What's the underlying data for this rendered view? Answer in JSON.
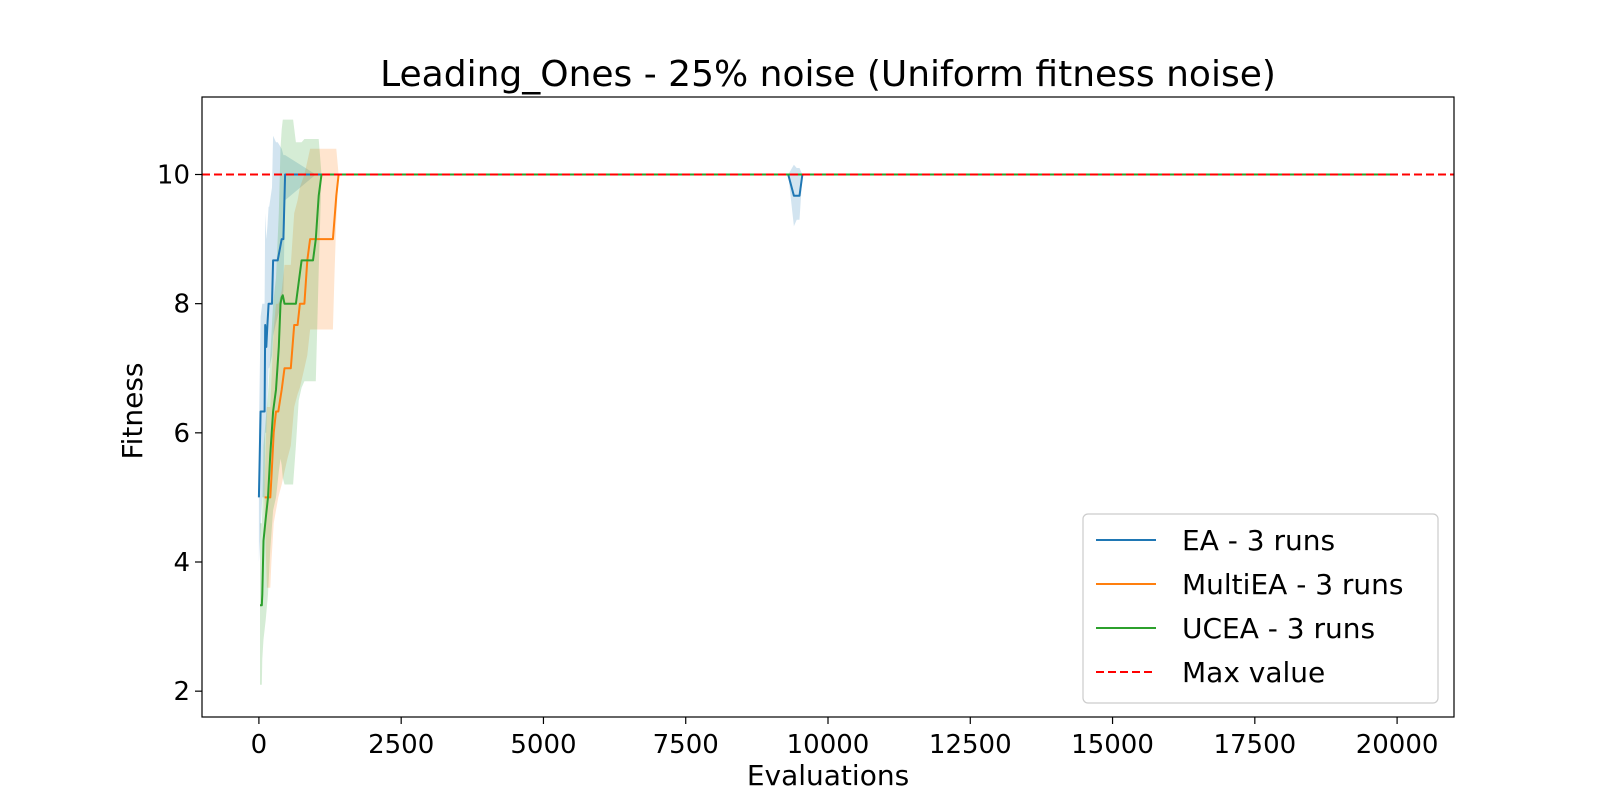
{
  "chart_data": {
    "type": "line",
    "title": "Leading_Ones - 25% noise (Uniform fitness noise)",
    "xlabel": "Evaluations",
    "ylabel": "Fitness",
    "xlim": [
      -1000,
      21000
    ],
    "ylim": [
      1.6,
      11.2
    ],
    "xticks": [
      0,
      2500,
      5000,
      7500,
      10000,
      12500,
      15000,
      17500,
      20000
    ],
    "yticks": [
      2,
      4,
      6,
      8,
      10
    ],
    "grid": false,
    "legend_position": "lower-right",
    "max_value": 10,
    "series": [
      {
        "name": "EA - 3 runs",
        "color": "#1f77b4",
        "x": [
          0,
          30,
          60,
          100,
          110,
          130,
          150,
          170,
          180,
          230,
          250,
          300,
          330,
          400,
          430,
          460,
          1000,
          9300,
          9400,
          9450,
          9500,
          9550,
          9600,
          20000
        ],
        "y": [
          5.0,
          6.33,
          6.33,
          6.33,
          7.67,
          7.33,
          7.67,
          8.0,
          8.0,
          8.0,
          8.67,
          8.67,
          8.67,
          9.0,
          9.0,
          10.0,
          10.0,
          10.0,
          9.67,
          9.67,
          9.67,
          10.0,
          10.0,
          10.0
        ],
        "lower": [
          4.0,
          4.5,
          5.0,
          5.0,
          6.0,
          6.0,
          6.5,
          7.0,
          7.0,
          7.2,
          7.5,
          7.7,
          7.8,
          8.0,
          8.2,
          9.6,
          10.0,
          10.0,
          9.2,
          9.3,
          9.3,
          10.0,
          10.0,
          10.0
        ],
        "upper": [
          6.0,
          7.8,
          8.0,
          8.0,
          9.4,
          9.0,
          9.2,
          9.5,
          9.5,
          9.8,
          10.6,
          10.5,
          10.5,
          10.4,
          10.3,
          10.3,
          10.0,
          10.0,
          10.15,
          10.1,
          10.1,
          10.0,
          10.0,
          10.0
        ]
      },
      {
        "name": "MultiEA - 3 runs",
        "color": "#ff7f0e",
        "x": [
          100,
          140,
          160,
          200,
          220,
          260,
          300,
          340,
          400,
          450,
          500,
          560,
          620,
          680,
          720,
          800,
          850,
          900,
          1000,
          1150,
          1300,
          1330,
          1360,
          1400,
          1450,
          20000
        ],
        "y": [
          5.0,
          5.0,
          5.0,
          5.0,
          5.3,
          6.0,
          6.33,
          6.33,
          6.67,
          7.0,
          7.0,
          7.0,
          7.67,
          7.67,
          8.0,
          8.0,
          8.67,
          9.0,
          9.0,
          9.0,
          9.0,
          9.33,
          9.67,
          10.0,
          10.0,
          10.0
        ],
        "lower": [
          4.8,
          3.6,
          3.6,
          3.6,
          4.0,
          4.6,
          4.8,
          5.0,
          5.2,
          5.4,
          5.6,
          5.8,
          6.4,
          6.6,
          6.7,
          7.0,
          7.2,
          7.6,
          7.6,
          7.6,
          7.6,
          8.5,
          9.3,
          10.0,
          10.0,
          10.0
        ],
        "upper": [
          5.2,
          6.4,
          6.4,
          6.4,
          6.8,
          7.6,
          8.0,
          8.0,
          8.2,
          8.6,
          8.6,
          8.6,
          9.4,
          9.6,
          9.8,
          10.0,
          10.2,
          10.4,
          10.4,
          10.4,
          10.4,
          10.4,
          10.4,
          10.0,
          10.0,
          10.0
        ]
      },
      {
        "name": "UCEA - 3 runs",
        "color": "#2ca02c",
        "x": [
          20,
          50,
          60,
          80,
          120,
          160,
          200,
          250,
          300,
          350,
          380,
          400,
          420,
          450,
          480,
          500,
          550,
          600,
          650,
          700,
          750,
          800,
          900,
          950,
          1000,
          1050,
          1100,
          20000
        ],
        "y": [
          3.33,
          3.33,
          3.5,
          4.33,
          4.67,
          5.0,
          5.67,
          6.33,
          6.67,
          7.33,
          8.0,
          8.1,
          8.13,
          8.0,
          8.0,
          8.0,
          8.0,
          8.0,
          8.0,
          8.33,
          8.67,
          8.67,
          8.67,
          8.67,
          9.0,
          9.67,
          10.0,
          10.0
        ],
        "lower": [
          2.1,
          2.1,
          2.5,
          2.8,
          3.1,
          3.5,
          4.2,
          4.8,
          5.0,
          5.4,
          5.6,
          5.5,
          5.3,
          5.2,
          5.2,
          5.2,
          5.2,
          5.2,
          5.8,
          6.5,
          6.7,
          6.8,
          6.8,
          6.8,
          6.8,
          8.5,
          10.0,
          10.0
        ],
        "upper": [
          4.6,
          4.6,
          4.8,
          5.8,
          6.2,
          6.6,
          7.2,
          8.0,
          8.4,
          9.4,
          10.4,
          10.7,
          10.85,
          10.85,
          10.85,
          10.85,
          10.85,
          10.85,
          10.5,
          10.5,
          10.5,
          10.55,
          10.55,
          10.55,
          10.55,
          10.55,
          10.0,
          10.0
        ]
      }
    ],
    "max_line": {
      "name": "Max value",
      "color": "#ff0000",
      "y": 10
    }
  }
}
